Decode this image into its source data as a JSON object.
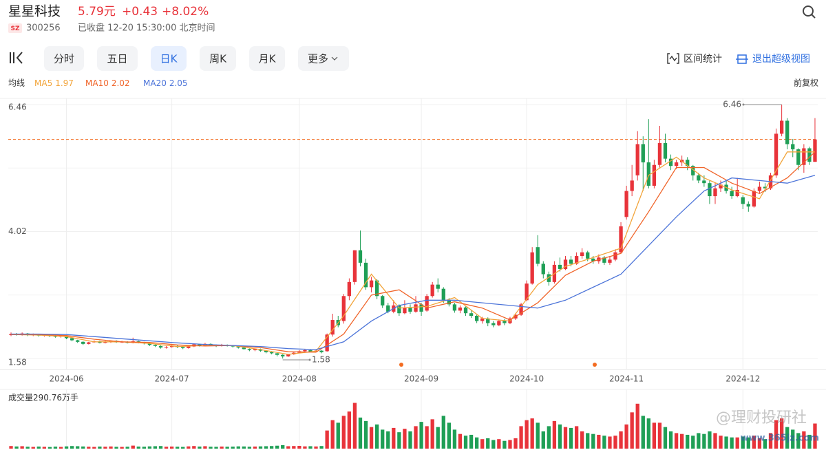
{
  "header": {
    "name": "星星科技",
    "price": "5.79元",
    "change": "+0.43",
    "change_pct": "+8.02%",
    "exchange": "SZ",
    "code": "300256",
    "status": "已收盘 12-20 15:30:00 北京时间"
  },
  "toolbar": {
    "tabs": [
      "分时",
      "五日",
      "日K",
      "周K",
      "月K",
      "更多"
    ],
    "active_tab": 2,
    "tools": [
      "区间统计",
      "退出超级视图"
    ]
  },
  "watermark": [
    "@理财投研社",
    "www.365jz.com"
  ],
  "chart_data": {
    "type": "candlestick",
    "indicator_label": "均线",
    "adjust_label": "前复权",
    "up_color": "#e8333a",
    "down_color": "#1f9f56",
    "grid": true,
    "last_price": 5.79,
    "last_price_color": "#f36c21",
    "ylim": [
      1.58,
      6.46
    ],
    "yticks": [
      1.58,
      4.02,
      6.46
    ],
    "xlim": [
      -0.5,
      145.5
    ],
    "xticks": [
      {
        "value": 10,
        "label": "2024-06"
      },
      {
        "value": 29,
        "label": "2024-07"
      },
      {
        "value": 52,
        "label": "2024-08"
      },
      {
        "value": 74,
        "label": "2024-09"
      },
      {
        "value": 93,
        "label": "2024-10"
      },
      {
        "value": 111,
        "label": "2024-11"
      },
      {
        "value": 132,
        "label": "2024-12"
      }
    ],
    "open": [
      2.03,
      2.05,
      2.04,
      2.06,
      2.03,
      2.04,
      2.02,
      2.03,
      2.01,
      2.0,
      2.01,
      1.97,
      1.93,
      1.9,
      1.86,
      1.89,
      1.91,
      1.88,
      1.9,
      1.92,
      1.89,
      1.9,
      1.88,
      1.91,
      1.89,
      1.87,
      1.84,
      1.82,
      1.79,
      1.8,
      1.82,
      1.8,
      1.78,
      1.81,
      1.85,
      1.83,
      1.86,
      1.84,
      1.82,
      1.84,
      1.83,
      1.81,
      1.79,
      1.76,
      1.74,
      1.76,
      1.73,
      1.7,
      1.68,
      1.65,
      1.62,
      1.66,
      1.69,
      1.72,
      1.74,
      1.71,
      1.73,
      1.72,
      2.04,
      2.32,
      2.3,
      2.78,
      3.05,
      3.66,
      3.42,
      2.95,
      3.08,
      2.78,
      2.6,
      2.48,
      2.6,
      2.45,
      2.55,
      2.48,
      2.62,
      2.5,
      2.78,
      3.0,
      2.92,
      2.7,
      2.62,
      2.5,
      2.56,
      2.45,
      2.4,
      2.3,
      2.35,
      2.26,
      2.22,
      2.3,
      2.26,
      2.35,
      2.42,
      2.7,
      3.02,
      3.72,
      3.4,
      3.2,
      3.05,
      3.38,
      3.3,
      3.48,
      3.4,
      3.55,
      3.62,
      3.5,
      3.45,
      3.52,
      3.42,
      3.48,
      3.62,
      4.3,
      4.8,
      5.1,
      5.7,
      5.35,
      4.9,
      5.3,
      5.72,
      5.42,
      5.28,
      5.35,
      5.4,
      5.28,
      5.1,
      5.0,
      4.95,
      4.7,
      4.85,
      4.92,
      4.8,
      4.7,
      4.68,
      4.55,
      4.5,
      4.8,
      4.88,
      4.85,
      5.1,
      5.9,
      6.15,
      5.7,
      5.6,
      5.3,
      5.62,
      5.36
    ],
    "close": [
      2.05,
      2.04,
      2.06,
      2.03,
      2.04,
      2.02,
      2.03,
      2.01,
      2.0,
      2.01,
      1.97,
      1.93,
      1.9,
      1.86,
      1.89,
      1.91,
      1.88,
      1.9,
      1.92,
      1.89,
      1.9,
      1.88,
      1.91,
      1.89,
      1.87,
      1.84,
      1.82,
      1.79,
      1.8,
      1.82,
      1.8,
      1.78,
      1.81,
      1.85,
      1.83,
      1.86,
      1.84,
      1.82,
      1.84,
      1.83,
      1.81,
      1.79,
      1.76,
      1.74,
      1.76,
      1.73,
      1.7,
      1.68,
      1.65,
      1.62,
      1.66,
      1.69,
      1.72,
      1.74,
      1.71,
      1.73,
      1.7,
      2.04,
      2.32,
      2.22,
      2.78,
      3.05,
      3.66,
      3.42,
      2.95,
      3.08,
      2.78,
      2.6,
      2.48,
      2.6,
      2.45,
      2.55,
      2.48,
      2.62,
      2.48,
      2.78,
      3.0,
      2.92,
      2.7,
      2.62,
      2.5,
      2.56,
      2.45,
      2.4,
      2.3,
      2.35,
      2.26,
      2.22,
      2.3,
      2.26,
      2.35,
      2.42,
      2.62,
      3.02,
      3.62,
      3.4,
      3.2,
      3.05,
      3.38,
      3.3,
      3.48,
      3.4,
      3.55,
      3.62,
      3.5,
      3.45,
      3.52,
      3.42,
      3.48,
      3.62,
      4.12,
      4.8,
      5.0,
      5.7,
      5.35,
      4.9,
      5.3,
      5.72,
      5.42,
      5.28,
      5.35,
      5.4,
      5.28,
      5.1,
      5.0,
      4.95,
      4.7,
      4.85,
      4.92,
      4.8,
      4.7,
      4.82,
      4.55,
      4.5,
      4.8,
      4.88,
      4.85,
      5.1,
      5.9,
      6.15,
      5.7,
      5.6,
      5.3,
      5.62,
      5.36,
      5.79
    ],
    "high": [
      2.08,
      2.07,
      2.08,
      2.07,
      2.06,
      2.05,
      2.05,
      2.04,
      2.03,
      2.03,
      2.02,
      1.98,
      1.94,
      1.91,
      1.9,
      1.93,
      1.92,
      1.92,
      1.93,
      1.93,
      1.92,
      1.91,
      1.98,
      1.92,
      1.9,
      1.88,
      1.85,
      1.83,
      1.82,
      1.84,
      1.83,
      1.81,
      1.82,
      1.87,
      1.86,
      1.88,
      1.87,
      1.85,
      1.86,
      1.85,
      1.84,
      1.82,
      1.8,
      1.77,
      1.77,
      1.77,
      1.74,
      1.71,
      1.69,
      1.66,
      1.67,
      1.7,
      1.74,
      1.76,
      1.75,
      1.75,
      1.74,
      2.06,
      2.44,
      2.4,
      2.82,
      3.12,
      3.66,
      4.04,
      3.5,
      3.15,
      3.1,
      2.8,
      2.65,
      2.7,
      2.62,
      2.7,
      2.62,
      2.78,
      2.65,
      2.82,
      3.05,
      3.12,
      2.95,
      2.74,
      2.65,
      2.6,
      2.58,
      2.5,
      2.42,
      2.38,
      2.37,
      2.3,
      2.33,
      2.34,
      2.38,
      2.45,
      2.65,
      3.08,
      3.72,
      3.95,
      3.45,
      3.25,
      3.45,
      3.52,
      3.55,
      3.55,
      3.62,
      3.7,
      3.65,
      3.55,
      3.58,
      3.55,
      3.55,
      3.68,
      4.2,
      4.9,
      5.3,
      5.95,
      5.85,
      6.18,
      5.4,
      6.05,
      5.9,
      5.5,
      5.4,
      5.48,
      5.45,
      5.3,
      5.15,
      5.1,
      5.0,
      4.95,
      5.0,
      5.0,
      4.88,
      5.05,
      4.72,
      4.6,
      4.85,
      4.98,
      4.95,
      5.15,
      6.0,
      6.46,
      6.2,
      5.8,
      5.62,
      5.7,
      5.65,
      6.2
    ],
    "low": [
      2.01,
      2.02,
      2.02,
      2.01,
      2.01,
      2.0,
      2.0,
      1.99,
      1.98,
      1.98,
      1.95,
      1.91,
      1.88,
      1.84,
      1.85,
      1.88,
      1.87,
      1.87,
      1.88,
      1.88,
      1.88,
      1.87,
      1.87,
      1.87,
      1.85,
      1.82,
      1.8,
      1.77,
      1.77,
      1.79,
      1.78,
      1.76,
      1.77,
      1.8,
      1.81,
      1.82,
      1.82,
      1.8,
      1.81,
      1.81,
      1.79,
      1.77,
      1.75,
      1.72,
      1.72,
      1.71,
      1.68,
      1.66,
      1.62,
      1.58,
      1.61,
      1.65,
      1.68,
      1.7,
      1.7,
      1.7,
      1.68,
      1.71,
      2.0,
      2.18,
      2.25,
      2.7,
      3.0,
      3.35,
      2.9,
      2.85,
      2.72,
      2.55,
      2.45,
      2.45,
      2.4,
      2.43,
      2.44,
      2.46,
      2.4,
      2.48,
      2.75,
      2.85,
      2.65,
      2.58,
      2.46,
      2.45,
      2.4,
      2.36,
      2.26,
      2.25,
      2.2,
      2.18,
      2.2,
      2.22,
      2.24,
      2.32,
      2.4,
      2.68,
      3.0,
      3.35,
      3.12,
      2.98,
      3.02,
      3.25,
      3.28,
      3.35,
      3.38,
      3.5,
      3.45,
      3.4,
      3.4,
      3.38,
      3.38,
      3.45,
      3.6,
      4.25,
      4.7,
      5.0,
      4.8,
      4.85,
      4.85,
      5.25,
      5.35,
      5.2,
      5.22,
      5.28,
      5.2,
      5.0,
      4.95,
      4.88,
      4.55,
      4.55,
      4.78,
      4.75,
      4.65,
      4.68,
      4.45,
      4.4,
      4.48,
      4.75,
      4.78,
      4.82,
      5.05,
      5.85,
      5.6,
      5.45,
      5.2,
      5.15,
      5.3,
      5.36
    ],
    "volume_label": "成交量",
    "volume_unit": "万手",
    "vol_ylim": [
      0,
      550
    ],
    "volume": [
      30,
      25,
      28,
      22,
      20,
      24,
      21,
      19,
      23,
      20,
      26,
      30,
      28,
      25,
      22,
      20,
      24,
      22,
      25,
      21,
      20,
      22,
      35,
      24,
      22,
      26,
      28,
      30,
      22,
      24,
      22,
      20,
      26,
      30,
      24,
      28,
      22,
      21,
      24,
      22,
      23,
      26,
      25,
      22,
      24,
      26,
      28,
      30,
      34,
      40,
      28,
      30,
      32,
      26,
      28,
      25,
      30,
      210,
      330,
      300,
      380,
      430,
      530,
      360,
      320,
      250,
      280,
      220,
      200,
      240,
      190,
      230,
      200,
      260,
      310,
      260,
      340,
      250,
      380,
      300,
      220,
      170,
      150,
      160,
      130,
      110,
      120,
      100,
      110,
      90,
      100,
      120,
      260,
      330,
      350,
      300,
      200,
      260,
      320,
      280,
      250,
      240,
      260,
      200,
      180,
      170,
      160,
      150,
      140,
      150,
      200,
      280,
      420,
      520,
      380,
      350,
      300,
      300,
      250,
      200,
      180,
      170,
      160,
      150,
      180,
      170,
      200,
      180,
      150,
      140,
      130,
      130,
      140,
      130,
      150,
      120,
      110,
      180,
      330,
      350,
      250,
      220,
      180,
      200,
      160,
      290.76
    ],
    "ma": [
      {
        "name": "MA5",
        "value": 1.97,
        "color": "#f2a43a",
        "x": [
          0,
          5,
          10,
          15,
          20,
          25,
          30,
          35,
          40,
          45,
          50,
          55,
          60,
          65,
          70,
          75,
          80,
          85,
          90,
          95,
          100,
          105,
          110,
          115,
          120,
          125,
          130,
          135,
          140,
          145
        ],
        "values": [
          2.04,
          2.03,
          2.0,
          1.9,
          1.9,
          1.87,
          1.81,
          1.83,
          1.83,
          1.75,
          1.66,
          1.72,
          2.4,
          3.2,
          2.55,
          2.58,
          2.75,
          2.35,
          2.3,
          3.0,
          3.35,
          3.52,
          3.7,
          5.1,
          5.45,
          5.05,
          4.82,
          4.65,
          5.55,
          5.55
        ]
      },
      {
        "name": "MA10",
        "value": 2.02,
        "color": "#f06429",
        "x": [
          0,
          5,
          10,
          15,
          20,
          25,
          30,
          35,
          40,
          45,
          50,
          55,
          60,
          65,
          70,
          75,
          80,
          85,
          90,
          95,
          100,
          105,
          110,
          115,
          120,
          125,
          130,
          135,
          140,
          145
        ],
        "values": [
          2.04,
          2.04,
          2.02,
          1.95,
          1.9,
          1.89,
          1.84,
          1.82,
          1.83,
          1.79,
          1.71,
          1.7,
          2.05,
          2.8,
          2.9,
          2.55,
          2.67,
          2.55,
          2.32,
          2.65,
          3.18,
          3.45,
          3.6,
          4.4,
          5.25,
          5.25,
          4.95,
          4.75,
          5.05,
          5.55
        ]
      },
      {
        "name": "MA20",
        "value": 2.05,
        "color": "#4c74d9",
        "x": [
          0,
          5,
          10,
          15,
          20,
          25,
          30,
          35,
          40,
          45,
          50,
          55,
          60,
          65,
          70,
          75,
          80,
          85,
          90,
          95,
          100,
          105,
          110,
          115,
          120,
          125,
          130,
          135,
          140,
          145
        ],
        "values": [
          2.05,
          2.05,
          2.04,
          2.0,
          1.96,
          1.92,
          1.88,
          1.85,
          1.83,
          1.81,
          1.77,
          1.75,
          1.9,
          2.3,
          2.6,
          2.7,
          2.7,
          2.65,
          2.6,
          2.55,
          2.7,
          2.95,
          3.2,
          3.75,
          4.3,
          4.8,
          5.05,
          5.0,
          4.95,
          5.1
        ]
      }
    ]
  }
}
